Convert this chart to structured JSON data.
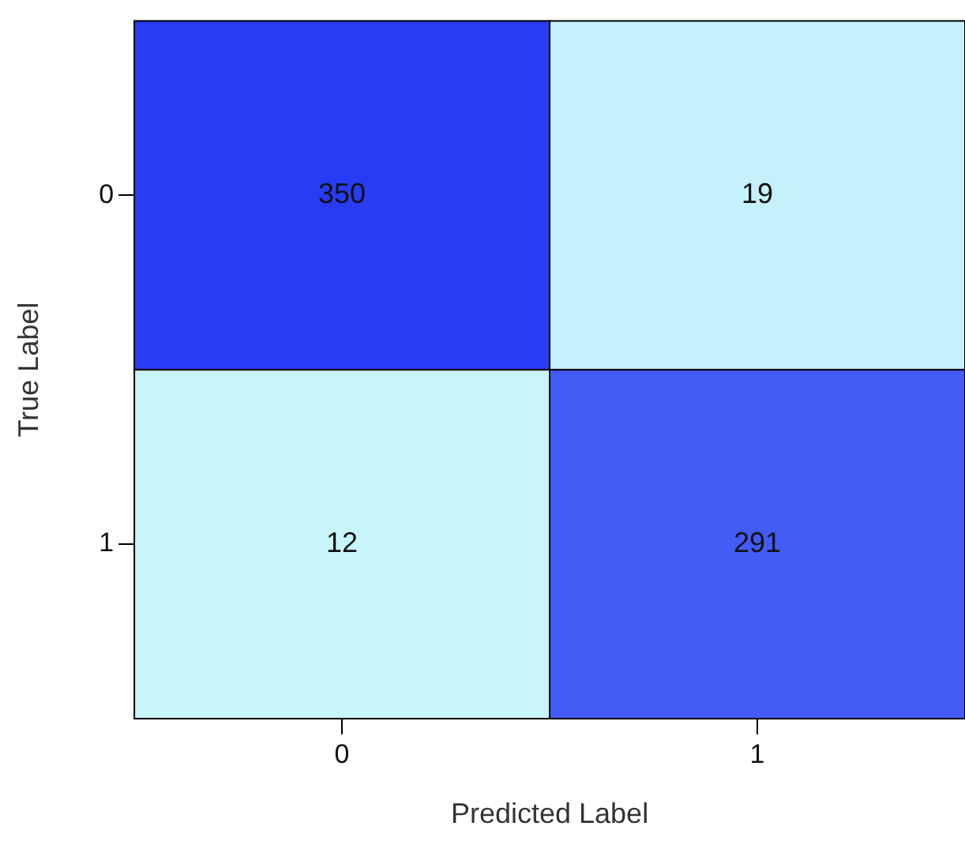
{
  "chart_data": {
    "type": "heatmap",
    "xlabel": "Predicted Label",
    "ylabel": "True Label",
    "data_labels": true,
    "categories": [
      "0",
      "1"
    ],
    "y_categories": [
      "0",
      "1"
    ],
    "cells": [
      [
        350,
        19
      ],
      [
        12,
        291
      ]
    ]
  }
}
